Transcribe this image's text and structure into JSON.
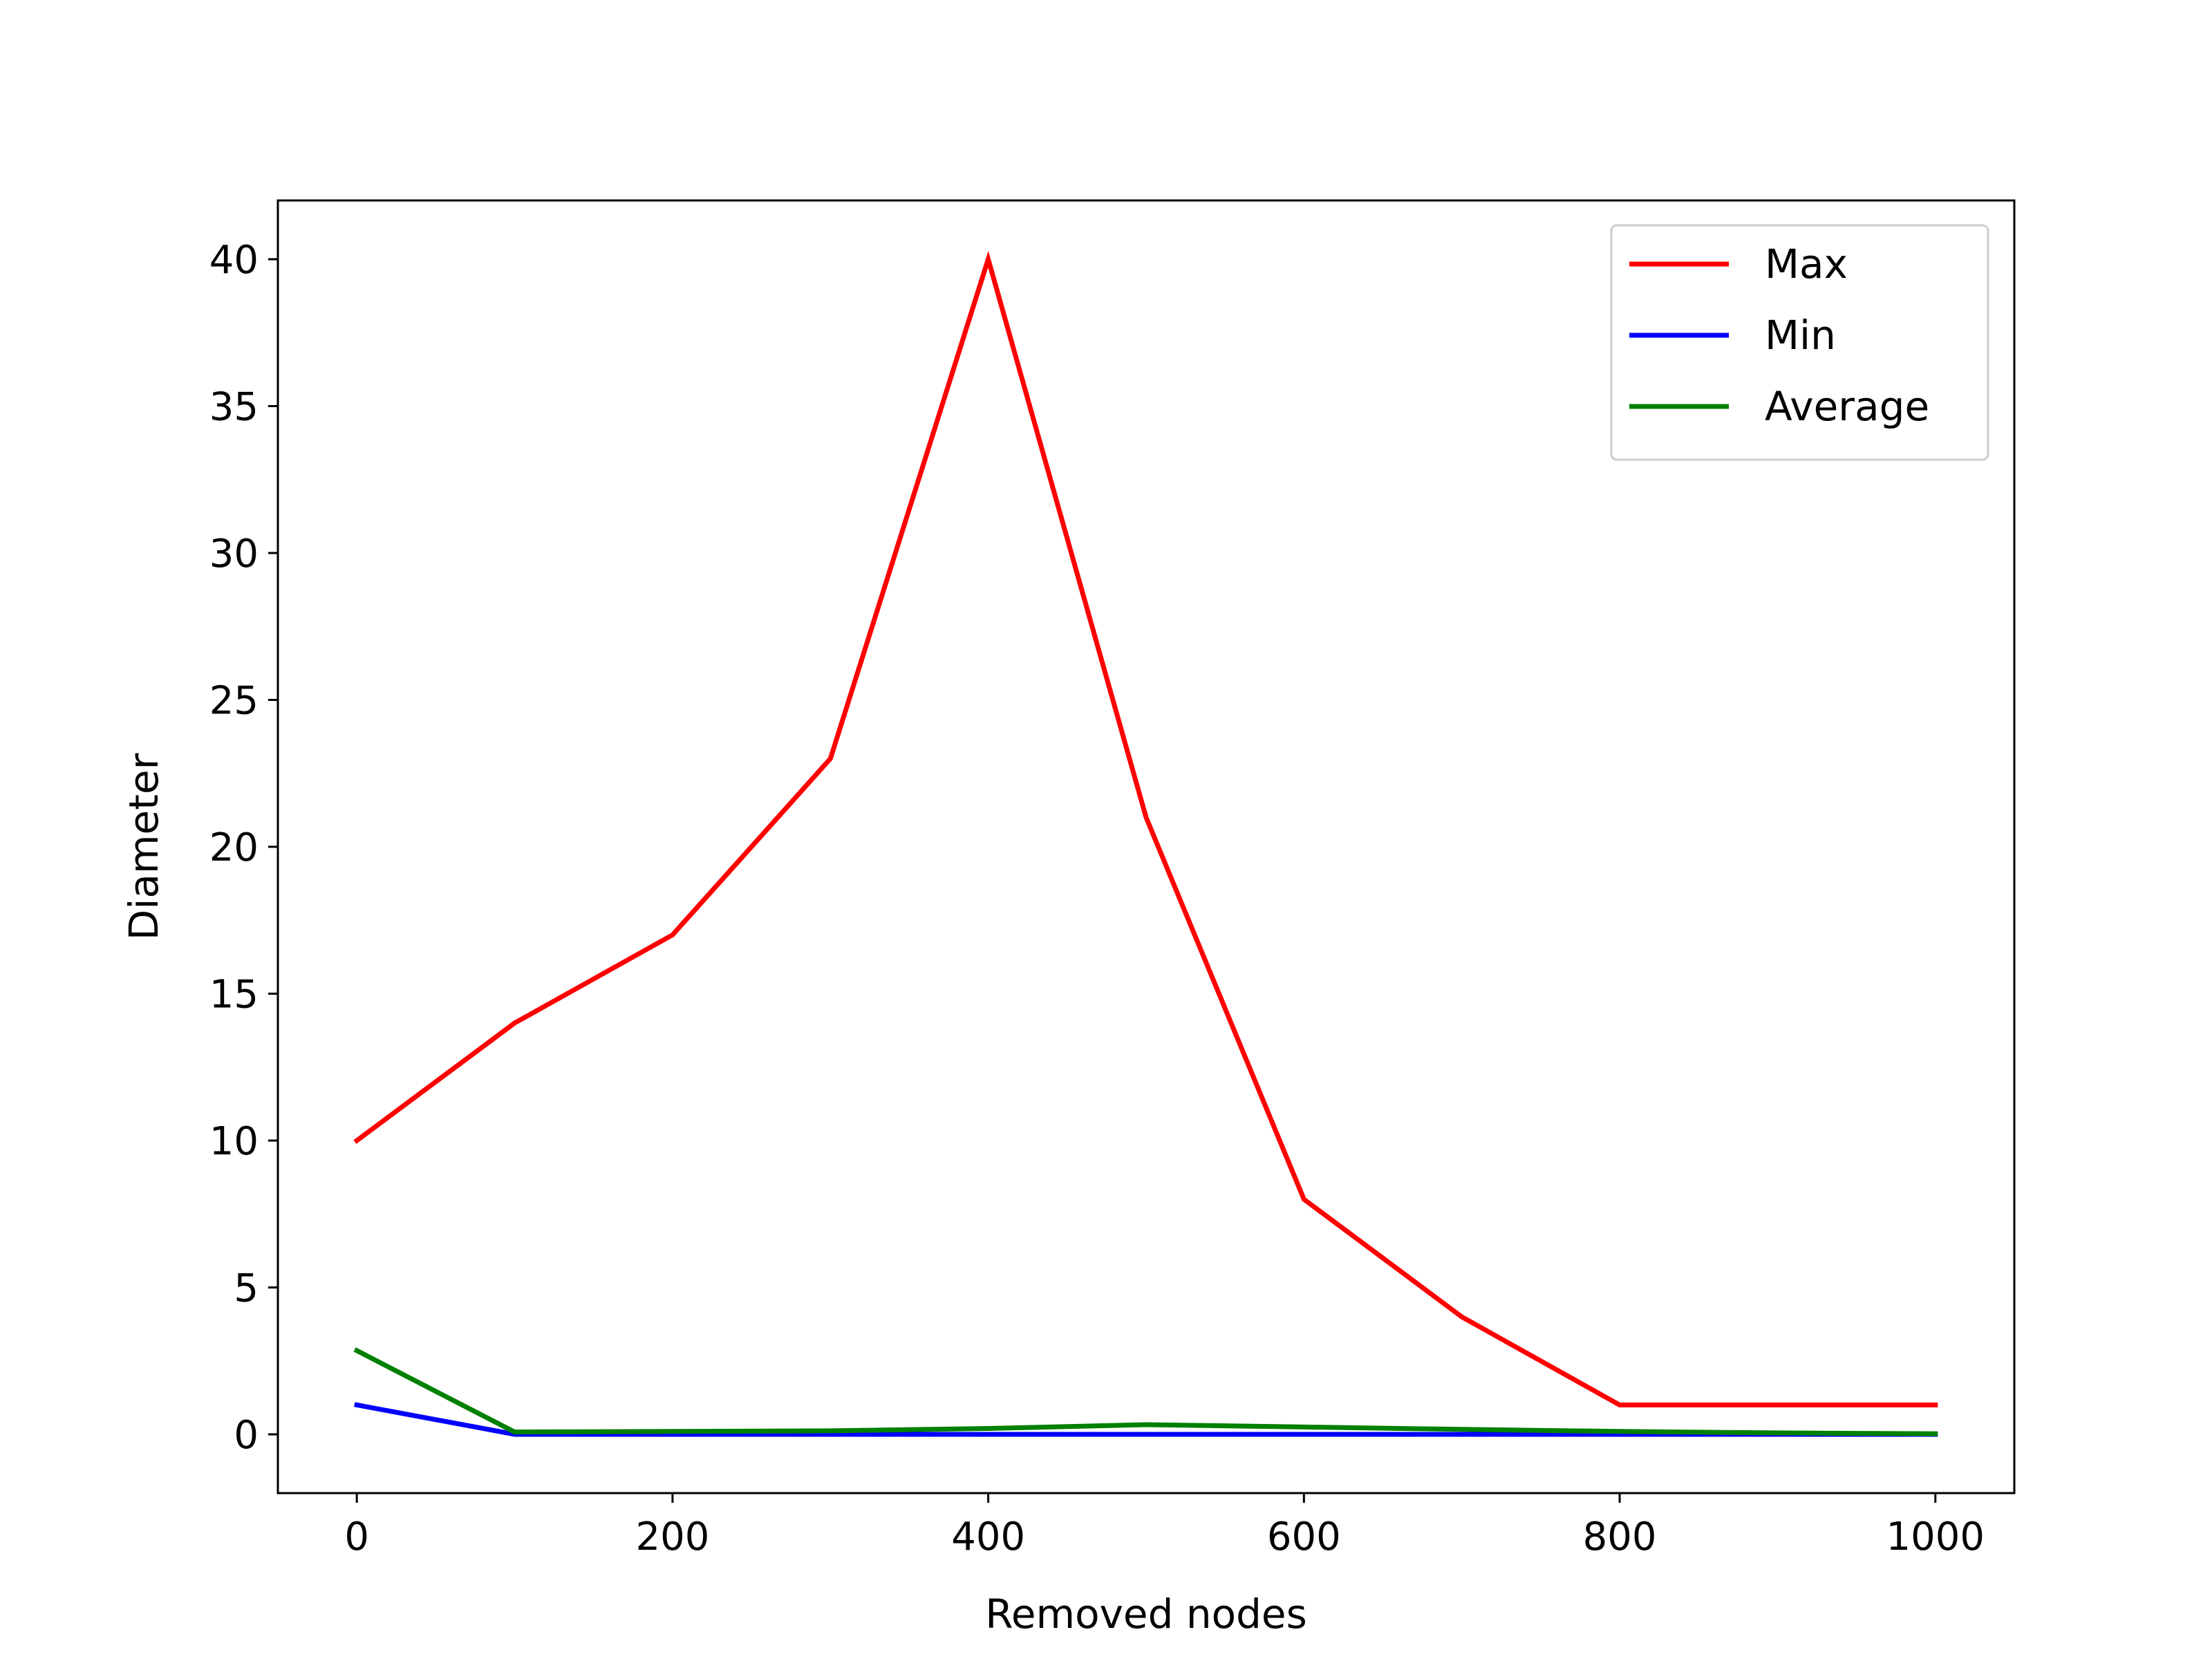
{
  "chart_data": {
    "type": "line",
    "xlabel": "Removed nodes",
    "ylabel": "Diameter",
    "xlim": [
      -50,
      1050
    ],
    "ylim": [
      -2,
      42
    ],
    "xticks": [
      0,
      200,
      400,
      600,
      800,
      1000
    ],
    "yticks": [
      0,
      5,
      10,
      15,
      20,
      25,
      30,
      35,
      40
    ],
    "grid": false,
    "legend_position": "top-right",
    "x": [
      0,
      100,
      200,
      300,
      400,
      500,
      600,
      700,
      800,
      900,
      1000
    ],
    "series": [
      {
        "name": "Max",
        "color": "#ff0000",
        "values": [
          10,
          14,
          17,
          23,
          40,
          21,
          8,
          4,
          1,
          1,
          1
        ]
      },
      {
        "name": "Min",
        "color": "#0000ff",
        "values": [
          1,
          0,
          0,
          0,
          0,
          0,
          0,
          0,
          0,
          0,
          0
        ]
      },
      {
        "name": "Average",
        "color": "#008000",
        "values": [
          2.85,
          0.08,
          0.1,
          0.12,
          0.2,
          0.33,
          0.25,
          0.17,
          0.1,
          0.05,
          0.02
        ]
      }
    ]
  }
}
